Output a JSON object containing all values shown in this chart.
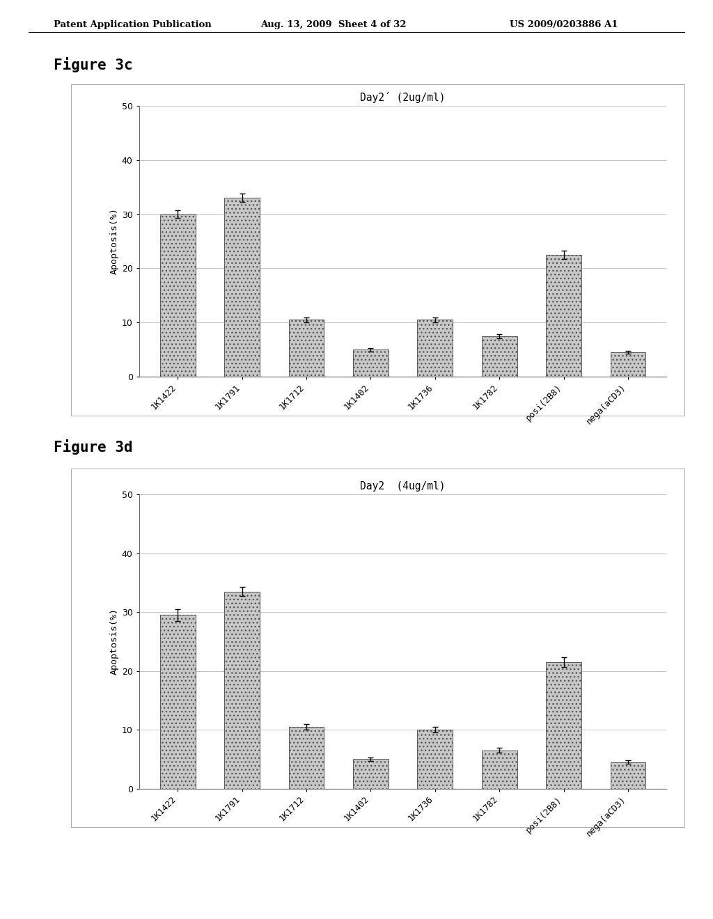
{
  "header_left": "Patent Application Publication",
  "header_mid": "Aug. 13, 2009  Sheet 4 of 32",
  "header_right": "US 2009/0203886 A1",
  "fig3c": {
    "title": "Figure 3c",
    "chart_title": "Day2´ (2ug/ml)",
    "categories": [
      "1K1422",
      "1K1791",
      "1K1712",
      "1K1402",
      "1K1736",
      "1K1782",
      "posi(2B8)",
      "nega(aCD3)"
    ],
    "values": [
      30.0,
      33.0,
      10.5,
      5.0,
      10.5,
      7.5,
      22.5,
      4.5
    ],
    "errors": [
      0.7,
      0.8,
      0.5,
      0.3,
      0.4,
      0.4,
      0.8,
      0.3
    ],
    "ylabel": "Apoptosis(%)",
    "ylim": [
      0,
      50
    ],
    "yticks": [
      0,
      10,
      20,
      30,
      40,
      50
    ]
  },
  "fig3d": {
    "title": "Figure 3d",
    "chart_title": "Day2  (4ug/ml)",
    "categories": [
      "1K1422",
      "1K1791",
      "1K1712",
      "1K1402",
      "1K1736",
      "1K1782",
      "posi(2B8)",
      "nega(aCD3)"
    ],
    "values": [
      29.5,
      33.5,
      10.5,
      5.0,
      10.0,
      6.5,
      21.5,
      4.5
    ],
    "errors": [
      1.0,
      0.8,
      0.5,
      0.3,
      0.5,
      0.4,
      0.8,
      0.3
    ],
    "ylabel": "Apoptosis(%)",
    "ylim": [
      0,
      50
    ],
    "yticks": [
      0,
      10,
      20,
      30,
      40,
      50
    ]
  },
  "bar_color": "#c8c8c8",
  "bar_edgecolor": "#555555",
  "bar_hatch": "...",
  "plot_bg_color": "#ffffff",
  "box_bg_color": "#ffffff",
  "grid_color": "#aaaaaa",
  "page_bg": "#ffffff"
}
